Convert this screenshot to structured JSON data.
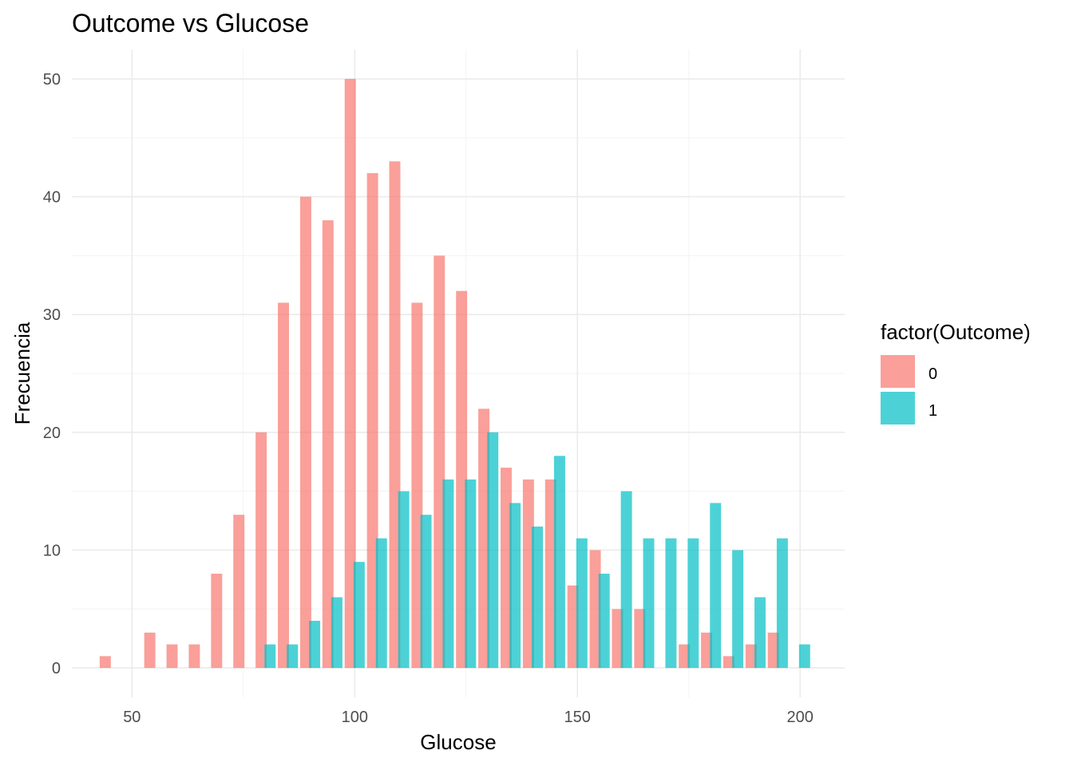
{
  "chart_data": {
    "type": "bar",
    "title": "Outcome vs Glucose",
    "xlabel": "Glucose",
    "ylabel": "Frecuencia",
    "xlim": [
      36.5,
      210
    ],
    "ylim": [
      -2.5,
      52.5
    ],
    "x_ticks": [
      50,
      100,
      150,
      200
    ],
    "y_ticks": [
      0,
      10,
      20,
      30,
      40,
      50
    ],
    "grid": true,
    "legend_title": "factor(Outcome)",
    "legend_position": "right",
    "series": [
      {
        "name": "0",
        "color": "#F8766D",
        "opacity": 0.7,
        "bars": [
          {
            "x": 44,
            "value": 1
          },
          {
            "x": 54,
            "value": 3
          },
          {
            "x": 59,
            "value": 2
          },
          {
            "x": 64,
            "value": 2
          },
          {
            "x": 69,
            "value": 8
          },
          {
            "x": 74,
            "value": 13
          },
          {
            "x": 79,
            "value": 20
          },
          {
            "x": 84,
            "value": 31
          },
          {
            "x": 89,
            "value": 40
          },
          {
            "x": 94,
            "value": 38
          },
          {
            "x": 99,
            "value": 50
          },
          {
            "x": 104,
            "value": 42
          },
          {
            "x": 109,
            "value": 43
          },
          {
            "x": 114,
            "value": 31
          },
          {
            "x": 119,
            "value": 35
          },
          {
            "x": 124,
            "value": 32
          },
          {
            "x": 129,
            "value": 22
          },
          {
            "x": 134,
            "value": 17
          },
          {
            "x": 139,
            "value": 16
          },
          {
            "x": 144,
            "value": 16
          },
          {
            "x": 149,
            "value": 7
          },
          {
            "x": 154,
            "value": 10
          },
          {
            "x": 159,
            "value": 5
          },
          {
            "x": 164,
            "value": 5
          },
          {
            "x": 174,
            "value": 2
          },
          {
            "x": 179,
            "value": 3
          },
          {
            "x": 184,
            "value": 1
          },
          {
            "x": 189,
            "value": 2
          },
          {
            "x": 194,
            "value": 3
          }
        ]
      },
      {
        "name": "1",
        "color": "#00BFC4",
        "opacity": 0.7,
        "bars": [
          {
            "x": 81,
            "value": 2
          },
          {
            "x": 86,
            "value": 2
          },
          {
            "x": 91,
            "value": 4
          },
          {
            "x": 96,
            "value": 6
          },
          {
            "x": 101,
            "value": 9
          },
          {
            "x": 106,
            "value": 11
          },
          {
            "x": 111,
            "value": 15
          },
          {
            "x": 116,
            "value": 13
          },
          {
            "x": 121,
            "value": 16
          },
          {
            "x": 126,
            "value": 16
          },
          {
            "x": 131,
            "value": 20
          },
          {
            "x": 136,
            "value": 14
          },
          {
            "x": 141,
            "value": 12
          },
          {
            "x": 146,
            "value": 18
          },
          {
            "x": 151,
            "value": 11
          },
          {
            "x": 156,
            "value": 8
          },
          {
            "x": 161,
            "value": 15
          },
          {
            "x": 166,
            "value": 11
          },
          {
            "x": 171,
            "value": 11
          },
          {
            "x": 176,
            "value": 11
          },
          {
            "x": 181,
            "value": 14
          },
          {
            "x": 186,
            "value": 10
          },
          {
            "x": 191,
            "value": 6
          },
          {
            "x": 196,
            "value": 11
          },
          {
            "x": 201,
            "value": 2
          }
        ]
      }
    ],
    "bar_width": 2.5
  }
}
